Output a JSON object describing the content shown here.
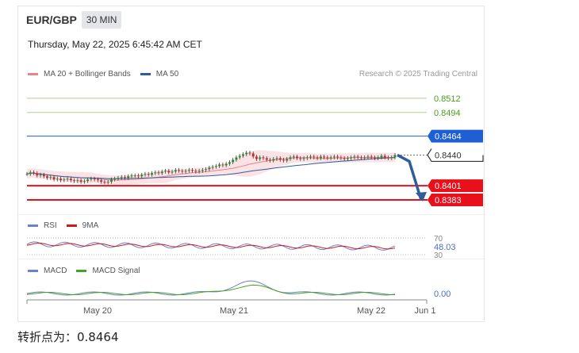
{
  "header": {
    "pair": "EUR/GBP",
    "timeframe": "30 MIN"
  },
  "timestamp": "Thursday, May 22, 2025 6:45:42 AM CET",
  "credit": "Research © 2025 Trading Central",
  "legend_main": [
    {
      "label": "MA 20 + Bollinger Bands",
      "color": "#e8838a"
    },
    {
      "label": "MA 50",
      "color": "#2f5d9a"
    }
  ],
  "legend_rsi": [
    {
      "label": "RSI",
      "color": "#6a80d0"
    },
    {
      "label": "9MA",
      "color": "#d01b1b"
    }
  ],
  "legend_macd": [
    {
      "label": "MACD",
      "color": "#6a80d0"
    },
    {
      "label": "MACD Signal",
      "color": "#4aa020"
    }
  ],
  "footer": {
    "text": "转折点为：0.8464"
  },
  "chart_data": {
    "type": "line",
    "subtype": "candlestick",
    "title": "EUR/GBP 30 MIN",
    "x_ticks": [
      "May 20",
      "May 21",
      "May 22",
      "Jun 1"
    ],
    "levels": [
      {
        "value": "0.8512",
        "kind": "target",
        "color": "#4aa020",
        "style": "thin-line"
      },
      {
        "value": "0.8494",
        "kind": "target",
        "color": "#4aa020",
        "style": "thin-line"
      },
      {
        "value": "0.8464",
        "kind": "pivot",
        "color": "#1e5fd6",
        "style": "tag"
      },
      {
        "value": "0.8440",
        "kind": "last",
        "color": "#333333",
        "style": "tag-outline"
      },
      {
        "value": "0.8401",
        "kind": "support",
        "color": "#e8101a",
        "style": "tag"
      },
      {
        "value": "0.8383",
        "kind": "support",
        "color": "#e8101a",
        "style": "tag"
      }
    ],
    "price_close_series": [
      0.8416,
      0.8418,
      0.8417,
      0.8414,
      0.8415,
      0.8413,
      0.8411,
      0.8412,
      0.8409,
      0.841,
      0.8408,
      0.8409,
      0.841,
      0.8408,
      0.8407,
      0.8408,
      0.8406,
      0.8407,
      0.8409,
      0.841,
      0.8409,
      0.8408,
      0.8406,
      0.8405,
      0.8406,
      0.8409,
      0.841,
      0.8411,
      0.8412,
      0.8411,
      0.8413,
      0.8414,
      0.8414,
      0.8413,
      0.8415,
      0.8416,
      0.8415,
      0.8417,
      0.8418,
      0.8417,
      0.8419,
      0.842,
      0.8418,
      0.8419,
      0.8421,
      0.842,
      0.8419,
      0.842,
      0.8421,
      0.842,
      0.8419,
      0.842,
      0.8421,
      0.8422,
      0.8424,
      0.8425,
      0.8426,
      0.8428,
      0.8427,
      0.8429,
      0.8431,
      0.8434,
      0.8437,
      0.8439,
      0.8441,
      0.8443,
      0.8442,
      0.8438,
      0.8435,
      0.8437,
      0.8436,
      0.8434,
      0.8433,
      0.8435,
      0.8436,
      0.8434,
      0.8433,
      0.8435,
      0.8437,
      0.8438,
      0.8436,
      0.8435,
      0.8436,
      0.8437,
      0.8438,
      0.8437,
      0.8436,
      0.8438,
      0.8437,
      0.8436,
      0.8437,
      0.8438,
      0.8437,
      0.8436,
      0.8435,
      0.8436,
      0.8437,
      0.8438,
      0.8437,
      0.8436,
      0.8437,
      0.8438,
      0.8437,
      0.8436,
      0.8437,
      0.8439,
      0.8437,
      0.8436,
      0.8437,
      0.844
    ],
    "forecast_path": [
      0.844,
      0.8432,
      0.8383
    ],
    "rsi": {
      "levels": [
        "70",
        "30"
      ],
      "value_label": "48.03"
    },
    "macd": {
      "value_label": "0.00"
    },
    "price_range": [
      0.8375,
      0.8522
    ]
  }
}
